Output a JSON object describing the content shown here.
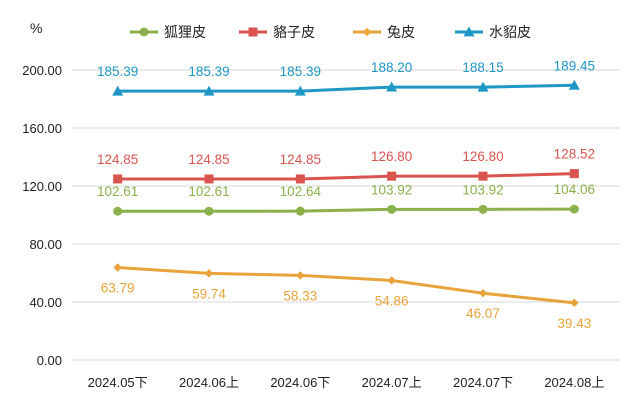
{
  "chart_data": {
    "type": "line",
    "unit_label": "%",
    "categories": [
      "2024.05下",
      "2024.06上",
      "2024.06下",
      "2024.07上",
      "2024.07下",
      "2024.08上"
    ],
    "ylim": [
      0,
      200
    ],
    "yticks": [
      "0.00",
      "40.00",
      "80.00",
      "120.00",
      "160.00",
      "200.00"
    ],
    "grid": true,
    "legend_position": "top",
    "series": [
      {
        "name": "狐狸皮",
        "color": "#8cb04a",
        "marker": "circle",
        "values": [
          102.61,
          102.61,
          102.64,
          103.92,
          103.92,
          104.06
        ],
        "labels": [
          "102.61",
          "102.61",
          "102.64",
          "103.92",
          "103.92",
          "104.06"
        ],
        "label_position": "above"
      },
      {
        "name": "貉子皮",
        "color": "#d9534f",
        "marker": "square",
        "values": [
          124.85,
          124.85,
          124.85,
          126.8,
          126.8,
          128.52
        ],
        "labels": [
          "124.85",
          "124.85",
          "124.85",
          "126.80",
          "126.80",
          "128.52"
        ],
        "label_position": "above"
      },
      {
        "name": "兔皮",
        "color": "#e8a33a",
        "marker": "diamond",
        "values": [
          63.79,
          59.74,
          58.33,
          54.86,
          46.07,
          39.43
        ],
        "labels": [
          "63.79",
          "59.74",
          "58.33",
          "54.86",
          "46.07",
          "39.43"
        ],
        "label_position": "below"
      },
      {
        "name": "水貂皮",
        "color": "#1f97c4",
        "marker": "triangle",
        "values": [
          185.39,
          185.39,
          185.39,
          188.2,
          188.15,
          189.45
        ],
        "labels": [
          "185.39",
          "185.39",
          "185.39",
          "188.20",
          "188.15",
          "189.45"
        ],
        "label_position": "above"
      }
    ]
  }
}
